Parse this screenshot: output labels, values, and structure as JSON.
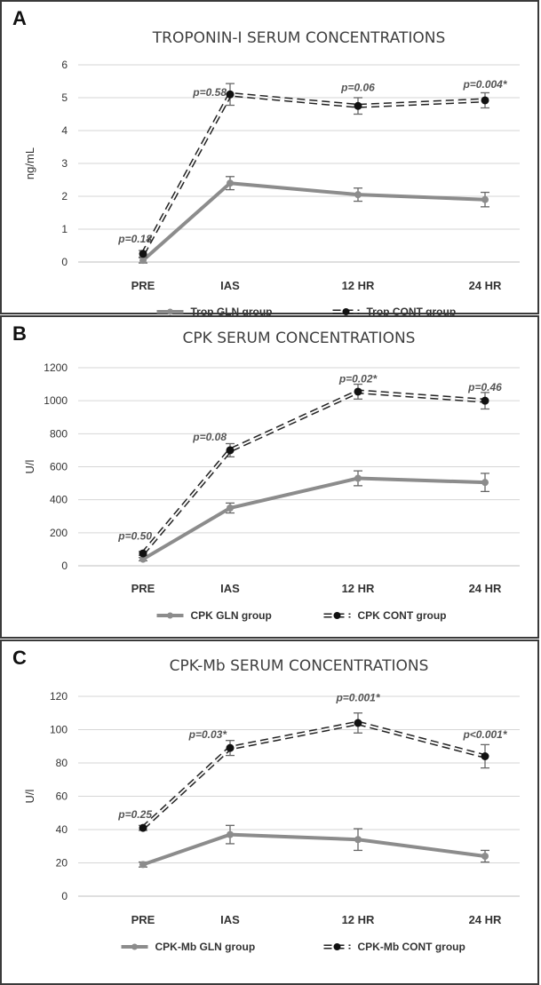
{
  "chart_data": [
    {
      "type": "line",
      "panel_label": "A",
      "title": "TROPONIN-I SERUM CONCENTRATIONS",
      "xlabel": "",
      "ylabel": "ng/mL",
      "categories": [
        "PRE",
        "IAS",
        "12 HR",
        "24 HR"
      ],
      "ylim": [
        0,
        6
      ],
      "yticks": [
        0,
        1,
        2,
        3,
        4,
        5,
        6
      ],
      "grid": true,
      "legend_position": "bottom",
      "series": [
        {
          "name": "Trop GLN group",
          "style": "solid-gray",
          "values": [
            0.05,
            2.4,
            2.05,
            1.9
          ],
          "errors": [
            0.08,
            0.2,
            0.2,
            0.22
          ]
        },
        {
          "name": "Trop CONT group",
          "style": "dashed-black",
          "values": [
            0.25,
            5.1,
            4.75,
            4.92
          ],
          "errors": [
            0.1,
            0.33,
            0.25,
            0.23
          ]
        }
      ],
      "annotations": [
        {
          "text": "p=0.18",
          "category": "PRE",
          "y": 0.6
        },
        {
          "text": "p=0.58",
          "category": "IAS",
          "y": 5.05
        },
        {
          "text": "p=0.06",
          "category": "12 HR",
          "y": 5.2
        },
        {
          "text": "p=0.004*",
          "category": "24 HR",
          "y": 5.3
        }
      ]
    },
    {
      "type": "line",
      "panel_label": "B",
      "title": "CPK SERUM CONCENTRATIONS",
      "xlabel": "",
      "ylabel": "U/l",
      "categories": [
        "PRE",
        "IAS",
        "12 HR",
        "24 HR"
      ],
      "ylim": [
        0,
        1200
      ],
      "yticks": [
        0,
        200,
        400,
        600,
        800,
        1000,
        1200
      ],
      "grid": true,
      "legend_position": "bottom",
      "series": [
        {
          "name": "CPK GLN group",
          "style": "solid-gray",
          "values": [
            40,
            350,
            530,
            505
          ],
          "errors": [
            10,
            30,
            45,
            55
          ]
        },
        {
          "name": "CPK CONT group",
          "style": "dashed-black",
          "values": [
            75,
            700,
            1055,
            1000
          ],
          "errors": [
            12,
            40,
            45,
            50
          ]
        }
      ],
      "annotations": [
        {
          "text": "p=0.50",
          "category": "PRE",
          "y": 160
        },
        {
          "text": "p=0.08",
          "category": "IAS",
          "y": 760
        },
        {
          "text": "p=0.02*",
          "category": "12 HR",
          "y": 1110
        },
        {
          "text": "p=0.46",
          "category": "24 HR",
          "y": 1060
        }
      ]
    },
    {
      "type": "line",
      "panel_label": "C",
      "title": "CPK-Mb SERUM CONCENTRATIONS",
      "xlabel": "",
      "ylabel": "U/l",
      "categories": [
        "PRE",
        "IAS",
        "12 HR",
        "24 HR"
      ],
      "ylim": [
        0,
        120
      ],
      "yticks": [
        0,
        20,
        40,
        60,
        80,
        100,
        120
      ],
      "grid": true,
      "legend_position": "bottom",
      "series": [
        {
          "name": "CPK-Mb GLN group",
          "style": "solid-gray",
          "values": [
            19,
            37,
            34,
            24
          ],
          "errors": [
            1.5,
            5.5,
            6.5,
            3.5
          ]
        },
        {
          "name": "CPK-Mb CONT group",
          "style": "dashed-black",
          "values": [
            41,
            89,
            104,
            84
          ],
          "errors": [
            1.5,
            4.5,
            6,
            7
          ]
        }
      ],
      "annotations": [
        {
          "text": "p=0.25",
          "category": "PRE",
          "y": 47
        },
        {
          "text": "p=0.03*",
          "category": "IAS",
          "y": 95
        },
        {
          "text": "p=0.001*",
          "category": "12 HR",
          "y": 117
        },
        {
          "text": "p<0.001*",
          "category": "24 HR",
          "y": 95
        }
      ]
    }
  ]
}
